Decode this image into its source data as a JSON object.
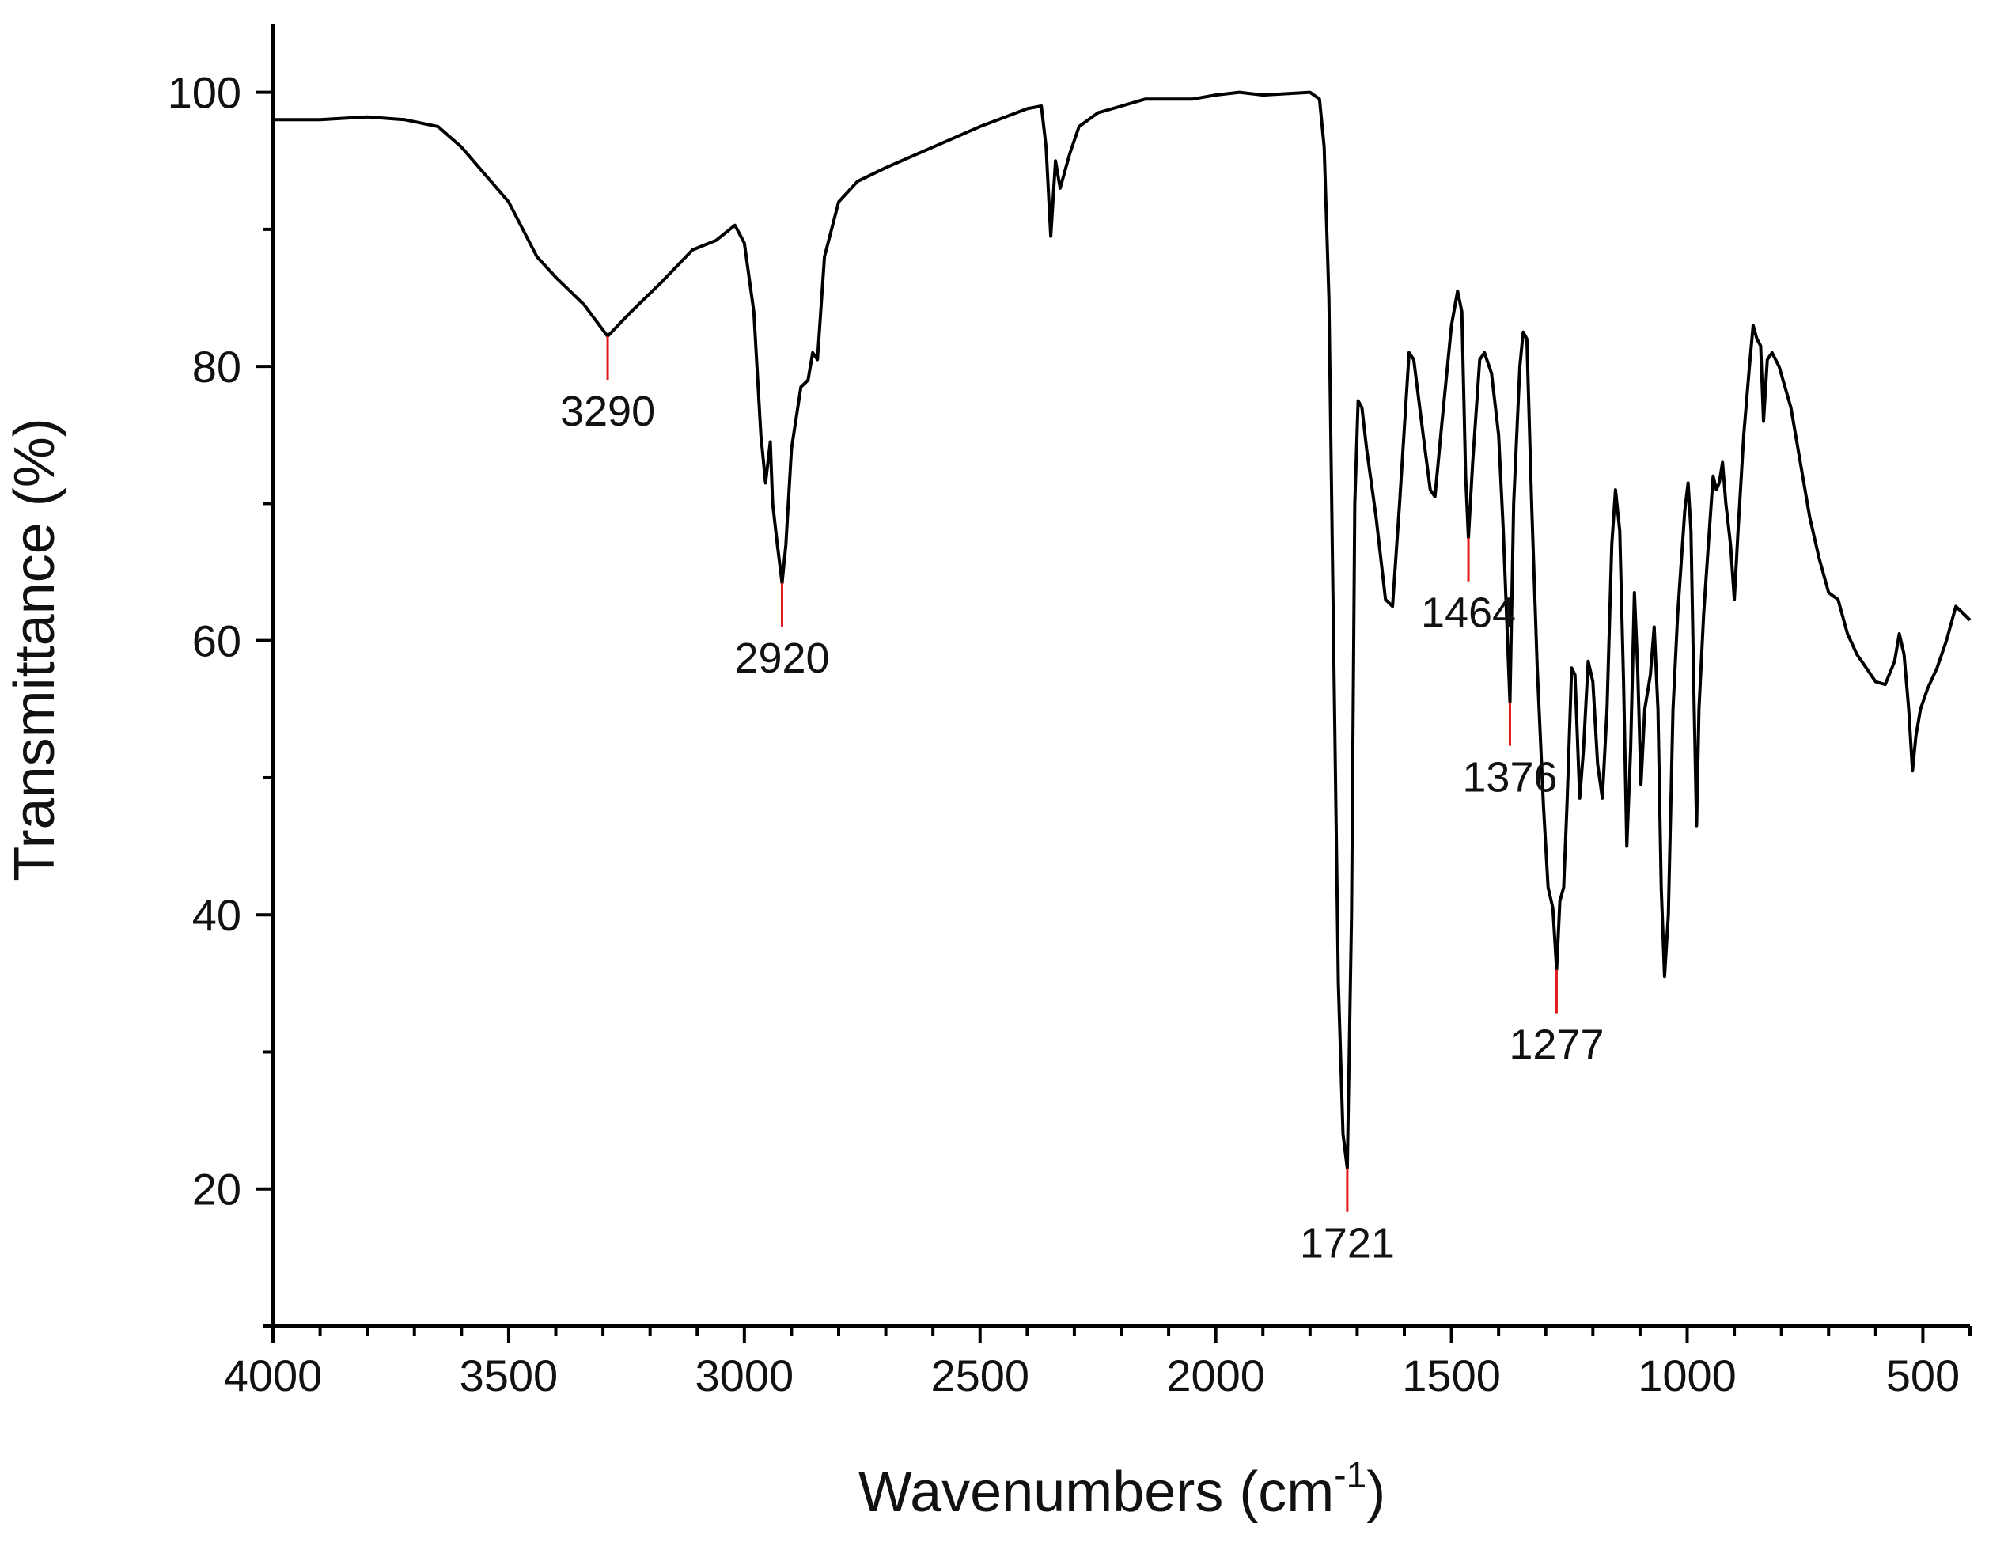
{
  "chart_data": {
    "type": "line",
    "xlabel": "Wavenumbers (cm",
    "xlabel_sup": "-1",
    "xlabel_close": ")",
    "ylabel": "Transmittance (%)",
    "xlim": [
      4000,
      400
    ],
    "x_reversed": true,
    "ylim": [
      10,
      105
    ],
    "x_ticks": [
      4000,
      3500,
      3000,
      2500,
      2000,
      1500,
      1000,
      500
    ],
    "x_tick_labels": [
      "4000",
      "3500",
      "3000",
      "2500",
      "2000",
      "1500",
      "1000",
      "500"
    ],
    "x_minor_step": 100,
    "y_ticks": [
      20,
      40,
      60,
      80,
      100
    ],
    "y_tick_labels": [
      "20",
      "40",
      "60",
      "80",
      "100"
    ],
    "y_minor_step": 10,
    "grid": false,
    "series": [
      {
        "color": "#000000",
        "points": [
          [
            4000,
            98.0
          ],
          [
            3900,
            98.0
          ],
          [
            3800,
            98.2
          ],
          [
            3720,
            98.0
          ],
          [
            3650,
            97.5
          ],
          [
            3600,
            96.0
          ],
          [
            3500,
            92.0
          ],
          [
            3440,
            88.0
          ],
          [
            3400,
            86.5
          ],
          [
            3340,
            84.5
          ],
          [
            3290,
            82.2
          ],
          [
            3240,
            84.0
          ],
          [
            3180,
            86.0
          ],
          [
            3110,
            88.5
          ],
          [
            3060,
            89.2
          ],
          [
            3020,
            90.3
          ],
          [
            3000,
            89.0
          ],
          [
            2980,
            84.0
          ],
          [
            2965,
            75.0
          ],
          [
            2955,
            71.5
          ],
          [
            2945,
            74.5
          ],
          [
            2940,
            70.0
          ],
          [
            2930,
            67.0
          ],
          [
            2920,
            64.2
          ],
          [
            2912,
            67.0
          ],
          [
            2900,
            74.0
          ],
          [
            2880,
            78.5
          ],
          [
            2865,
            79.0
          ],
          [
            2855,
            81.0
          ],
          [
            2845,
            80.5
          ],
          [
            2830,
            88.0
          ],
          [
            2800,
            92.0
          ],
          [
            2760,
            93.5
          ],
          [
            2700,
            94.5
          ],
          [
            2600,
            96.0
          ],
          [
            2500,
            97.5
          ],
          [
            2400,
            98.8
          ],
          [
            2370,
            99.0
          ],
          [
            2360,
            96.0
          ],
          [
            2350,
            89.5
          ],
          [
            2340,
            95.0
          ],
          [
            2330,
            93.0
          ],
          [
            2310,
            95.5
          ],
          [
            2290,
            97.5
          ],
          [
            2250,
            98.5
          ],
          [
            2200,
            99.0
          ],
          [
            2150,
            99.5
          ],
          [
            2100,
            99.5
          ],
          [
            2050,
            99.5
          ],
          [
            2000,
            99.8
          ],
          [
            1950,
            100.0
          ],
          [
            1900,
            99.8
          ],
          [
            1800,
            100.0
          ],
          [
            1780,
            99.5
          ],
          [
            1770,
            96.0
          ],
          [
            1760,
            85.0
          ],
          [
            1750,
            60.0
          ],
          [
            1740,
            35.0
          ],
          [
            1730,
            24.0
          ],
          [
            1721,
            21.5
          ],
          [
            1712,
            40.0
          ],
          [
            1705,
            70.0
          ],
          [
            1698,
            77.5
          ],
          [
            1690,
            77.0
          ],
          [
            1680,
            74.0
          ],
          [
            1660,
            69.0
          ],
          [
            1640,
            63.0
          ],
          [
            1625,
            62.5
          ],
          [
            1610,
            70.0
          ],
          [
            1590,
            81.0
          ],
          [
            1580,
            80.5
          ],
          [
            1560,
            75.0
          ],
          [
            1545,
            71.0
          ],
          [
            1535,
            70.5
          ],
          [
            1520,
            76.0
          ],
          [
            1500,
            83.0
          ],
          [
            1487,
            85.5
          ],
          [
            1478,
            84.0
          ],
          [
            1470,
            72.0
          ],
          [
            1464,
            67.5
          ],
          [
            1455,
            73.0
          ],
          [
            1440,
            80.5
          ],
          [
            1430,
            81.0
          ],
          [
            1415,
            79.5
          ],
          [
            1400,
            75.0
          ],
          [
            1390,
            68.0
          ],
          [
            1376,
            55.5
          ],
          [
            1368,
            70.0
          ],
          [
            1355,
            80.0
          ],
          [
            1348,
            82.5
          ],
          [
            1340,
            82.0
          ],
          [
            1330,
            70.0
          ],
          [
            1318,
            58.0
          ],
          [
            1305,
            48.0
          ],
          [
            1295,
            42.0
          ],
          [
            1285,
            40.5
          ],
          [
            1277,
            36.0
          ],
          [
            1270,
            41.0
          ],
          [
            1262,
            42.0
          ],
          [
            1255,
            48.0
          ],
          [
            1245,
            58.0
          ],
          [
            1238,
            57.5
          ],
          [
            1228,
            48.5
          ],
          [
            1220,
            52.0
          ],
          [
            1210,
            58.5
          ],
          [
            1200,
            57.0
          ],
          [
            1190,
            51.0
          ],
          [
            1180,
            48.5
          ],
          [
            1170,
            55.0
          ],
          [
            1160,
            67.0
          ],
          [
            1152,
            71.0
          ],
          [
            1143,
            68.0
          ],
          [
            1135,
            57.0
          ],
          [
            1128,
            45.0
          ],
          [
            1120,
            52.0
          ],
          [
            1112,
            63.5
          ],
          [
            1105,
            58.0
          ],
          [
            1098,
            49.5
          ],
          [
            1090,
            55.0
          ],
          [
            1078,
            57.5
          ],
          [
            1070,
            61.0
          ],
          [
            1062,
            55.0
          ],
          [
            1055,
            42.0
          ],
          [
            1048,
            35.5
          ],
          [
            1040,
            40.0
          ],
          [
            1030,
            55.0
          ],
          [
            1020,
            62.0
          ],
          [
            1005,
            69.5
          ],
          [
            998,
            71.5
          ],
          [
            992,
            68.0
          ],
          [
            985,
            55.0
          ],
          [
            980,
            46.5
          ],
          [
            975,
            55.0
          ],
          [
            965,
            62.0
          ],
          [
            955,
            67.0
          ],
          [
            945,
            72.0
          ],
          [
            938,
            71.0
          ],
          [
            932,
            71.5
          ],
          [
            925,
            73.0
          ],
          [
            918,
            70.0
          ],
          [
            908,
            67.0
          ],
          [
            900,
            63.0
          ],
          [
            892,
            68.0
          ],
          [
            880,
            75.0
          ],
          [
            868,
            80.0
          ],
          [
            860,
            83.0
          ],
          [
            852,
            82.0
          ],
          [
            844,
            81.5
          ],
          [
            838,
            76.0
          ],
          [
            830,
            80.5
          ],
          [
            820,
            81.0
          ],
          [
            805,
            80.0
          ],
          [
            780,
            77.0
          ],
          [
            760,
            73.0
          ],
          [
            740,
            69.0
          ],
          [
            720,
            66.0
          ],
          [
            700,
            63.5
          ],
          [
            680,
            63.0
          ],
          [
            660,
            60.5
          ],
          [
            640,
            59.0
          ],
          [
            620,
            58.0
          ],
          [
            600,
            57.0
          ],
          [
            580,
            56.8
          ],
          [
            560,
            58.5
          ],
          [
            550,
            60.5
          ],
          [
            540,
            59.0
          ],
          [
            530,
            55.0
          ],
          [
            522,
            50.5
          ],
          [
            515,
            53.0
          ],
          [
            505,
            55.0
          ],
          [
            490,
            56.5
          ],
          [
            470,
            58.0
          ],
          [
            450,
            60.0
          ],
          [
            430,
            62.5
          ],
          [
            415,
            62.0
          ],
          [
            400,
            61.5
          ]
        ]
      }
    ],
    "annotations": [
      {
        "text": "3290",
        "x": 3290,
        "y_peak": 82.2
      },
      {
        "text": "2920",
        "x": 2920,
        "y_peak": 64.2
      },
      {
        "text": "1721",
        "x": 1721,
        "y_peak": 21.5
      },
      {
        "text": "1464",
        "x": 1464,
        "y_peak": 67.5
      },
      {
        "text": "1376",
        "x": 1376,
        "y_peak": 55.5
      },
      {
        "text": "1277",
        "x": 1277,
        "y_peak": 36.0
      }
    ]
  }
}
